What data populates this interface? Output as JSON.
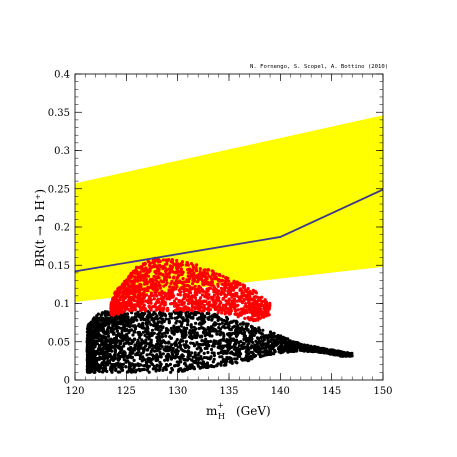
{
  "chart_data": {
    "type": "scatter",
    "annotation": "N. Fornengo, S. Scopel, A. Bottino  (2010)",
    "xlabel": "m",
    "xlabel_sup": "+",
    "xlabel_sub": "H",
    "xlabel_unit": "(GeV)",
    "ylabel": "BR(t → b H⁺)",
    "xlim": [
      120,
      150
    ],
    "ylim": [
      0,
      0.4
    ],
    "xticks": [
      120,
      125,
      130,
      135,
      140,
      145,
      150
    ],
    "yticks": [
      0,
      0.05,
      0.1,
      0.15,
      0.2,
      0.25,
      0.3,
      0.35,
      0.4
    ],
    "ytick_labels": [
      "0",
      "0.05",
      "0.1",
      "0.15",
      "0.2",
      "0.25",
      "0.3",
      "0.35",
      "0.4"
    ],
    "grid": false,
    "colors": {
      "band": "#ffff00",
      "line": "#3a3a8c",
      "red": "#ff0000",
      "black": "#000000"
    },
    "band": {
      "x": [
        120,
        150
      ],
      "lower": [
        0.102,
        0.148
      ],
      "upper": [
        0.257,
        0.346
      ]
    },
    "line": {
      "x": [
        120,
        140,
        150
      ],
      "y": [
        0.142,
        0.187,
        0.249
      ]
    },
    "series": [
      {
        "color": "black",
        "region_x": [
          121.2,
          147.0
        ],
        "envelope": [
          [
            121.2,
            0.01,
            0.07
          ],
          [
            122.0,
            0.01,
            0.085
          ],
          [
            123.0,
            0.01,
            0.09
          ],
          [
            125.0,
            0.01,
            0.09
          ],
          [
            127.0,
            0.01,
            0.09
          ],
          [
            130.0,
            0.01,
            0.09
          ],
          [
            132.0,
            0.015,
            0.09
          ],
          [
            134.0,
            0.018,
            0.085
          ],
          [
            136.0,
            0.022,
            0.077
          ],
          [
            138.0,
            0.03,
            0.068
          ],
          [
            140.0,
            0.035,
            0.058
          ],
          [
            142.0,
            0.038,
            0.047
          ],
          [
            144.0,
            0.036,
            0.042
          ],
          [
            146.0,
            0.031,
            0.037
          ],
          [
            147.0,
            0.031,
            0.035
          ]
        ]
      },
      {
        "color": "red",
        "region_x": [
          123.5,
          139.0
        ],
        "envelope": [
          [
            123.5,
            0.085,
            0.1
          ],
          [
            124.0,
            0.085,
            0.118
          ],
          [
            125.0,
            0.09,
            0.132
          ],
          [
            126.0,
            0.09,
            0.148
          ],
          [
            127.0,
            0.09,
            0.155
          ],
          [
            128.0,
            0.09,
            0.16
          ],
          [
            130.0,
            0.09,
            0.158
          ],
          [
            132.0,
            0.09,
            0.15
          ],
          [
            134.0,
            0.088,
            0.14
          ],
          [
            136.0,
            0.082,
            0.127
          ],
          [
            137.5,
            0.076,
            0.117
          ],
          [
            139.0,
            0.085,
            0.1
          ]
        ]
      }
    ]
  }
}
